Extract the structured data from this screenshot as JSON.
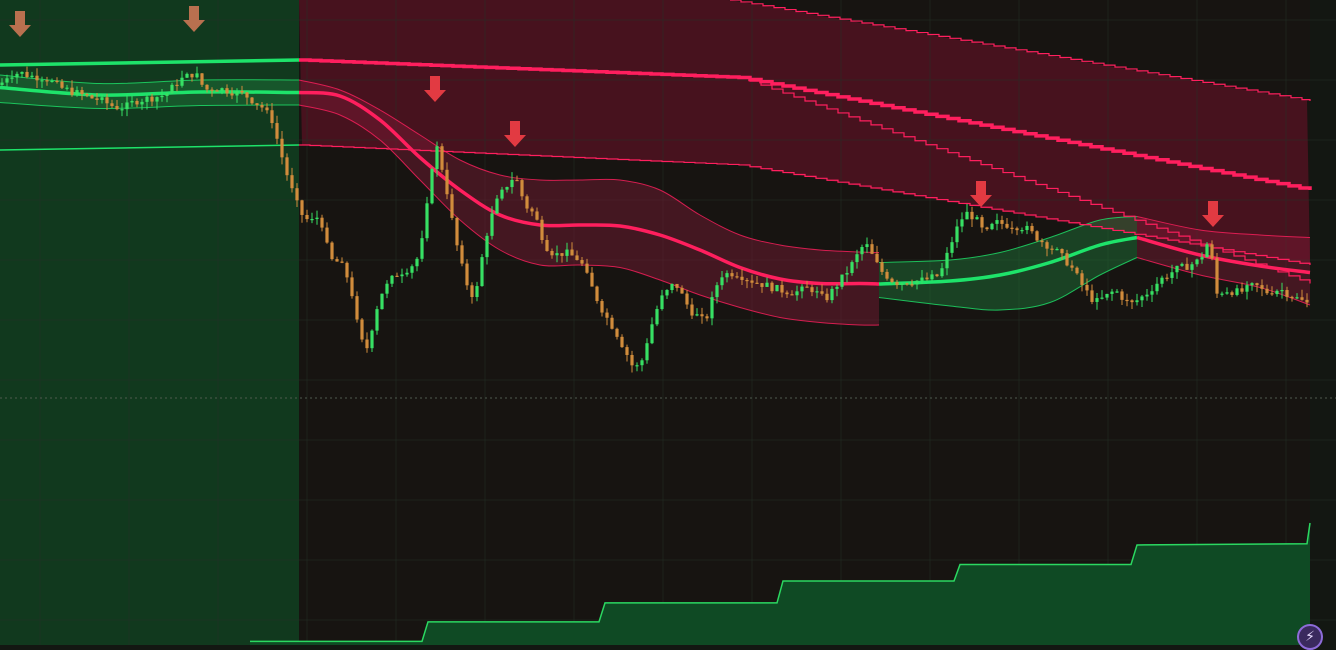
{
  "chart_data": {
    "type": "candlestick",
    "title": "",
    "xlabel": "",
    "ylabel": "",
    "ylim": [
      0,
      100
    ],
    "grid": true,
    "legend": "none",
    "price_path": {
      "x": [
        0,
        8,
        20,
        30,
        45,
        60,
        75,
        90,
        100,
        115,
        125,
        135,
        150,
        165,
        180,
        195,
        205,
        215,
        230,
        245,
        262,
        272,
        280,
        290,
        300,
        310,
        320,
        330,
        340,
        350,
        360,
        367,
        380,
        395,
        410,
        420,
        428,
        435,
        445,
        455,
        465,
        475,
        485,
        495,
        505,
        515,
        525,
        535,
        545,
        555,
        565,
        580,
        595,
        605,
        615,
        625,
        632,
        640,
        650,
        660,
        675,
        690,
        705,
        720,
        735,
        750,
        765,
        780,
        795,
        810,
        825,
        835,
        850,
        865,
        880,
        895,
        910,
        925,
        940,
        955,
        965,
        975,
        985,
        995,
        1010,
        1025,
        1040,
        1055,
        1070,
        1085,
        1095,
        1105,
        1115,
        1130,
        1145,
        1160,
        1175,
        1190,
        1200,
        1210,
        1215,
        1225,
        1240,
        1255,
        1265,
        1280,
        1295,
        1310
      ],
      "y": [
        83.0,
        85.0,
        85.5,
        84.8,
        84.5,
        82.5,
        81.5,
        80.5,
        80.0,
        78.6,
        78.5,
        79.8,
        80.4,
        81.0,
        84.0,
        85.5,
        82.0,
        82.5,
        81.8,
        81.0,
        78.6,
        76.0,
        70.0,
        63.0,
        57.5,
        55.5,
        57.0,
        48.0,
        47.5,
        43.5,
        32.0,
        30.5,
        41.0,
        45.0,
        46.5,
        49.0,
        60.0,
        72.0,
        64.0,
        52.5,
        44.0,
        40.0,
        52.0,
        59.0,
        62.5,
        65.0,
        59.0,
        57.0,
        51.0,
        49.0,
        49.5,
        48.0,
        41.0,
        37.0,
        34.0,
        30.0,
        27.0,
        26.5,
        34.0,
        40.0,
        43.5,
        38.0,
        35.5,
        45.0,
        45.5,
        44.0,
        43.0,
        42.0,
        41.5,
        42.5,
        40.0,
        42.5,
        46.5,
        51.5,
        46.0,
        43.5,
        43.7,
        44.0,
        45.0,
        53.5,
        57.5,
        56.5,
        53.0,
        55.5,
        55.0,
        54.5,
        52.0,
        50.0,
        47.0,
        42.0,
        39.5,
        40.5,
        42.0,
        39.0,
        41.0,
        44.0,
        46.0,
        47.0,
        48.0,
        52.5,
        41.0,
        42.0,
        41.5,
        43.0,
        41.5,
        42.2,
        40.5,
        39.0
      ]
    },
    "trend_bands": [
      {
        "x": [
          0,
          100,
          200,
          299
        ],
        "mid": [
          82.5,
          81.0,
          81.6,
          81.5
        ],
        "upper": [
          85.0,
          83.3,
          84.0,
          84.0
        ],
        "lower": [
          79.5,
          78.3,
          78.9,
          79.0
        ],
        "zone": "bull"
      },
      {
        "x": [
          299,
          340,
          380,
          420,
          460,
          500,
          540,
          580,
          620,
          660,
          700,
          740,
          780,
          820,
          860,
          879
        ],
        "mid": [
          81.5,
          80.8,
          76.0,
          68.5,
          62.0,
          57.0,
          55.0,
          55.0,
          54.8,
          53.0,
          50.0,
          46.5,
          44.2,
          43.3,
          43.3,
          43.2
        ],
        "upper": [
          84.0,
          82.0,
          78.0,
          73.0,
          68.0,
          65.0,
          64.0,
          64.0,
          64.0,
          62.0,
          57.0,
          53.0,
          51.0,
          50.0,
          49.6,
          49.5
        ],
        "lower": [
          79.0,
          77.0,
          72.0,
          64.0,
          56.0,
          50.0,
          47.0,
          47.0,
          46.5,
          44.0,
          41.0,
          38.5,
          36.5,
          35.5,
          35.0,
          35.0
        ],
        "zone": "bear"
      },
      {
        "x": [
          879,
          950,
          1000,
          1050,
          1100,
          1137
        ],
        "mid": [
          43.2,
          43.8,
          45.0,
          47.5,
          51.0,
          52.5
        ],
        "upper": [
          47.5,
          48.0,
          49.5,
          52.5,
          56.0,
          56.7
        ],
        "lower": [
          40.5,
          38.8,
          38.0,
          39.5,
          45.0,
          48.5
        ],
        "zone": "bull"
      },
      {
        "x": [
          1137,
          1200,
          1260,
          1310
        ],
        "mid": [
          52.5,
          49.0,
          46.8,
          45.5
        ],
        "upper": [
          56.7,
          54.0,
          53.0,
          52.5
        ],
        "lower": [
          48.5,
          45.0,
          42.5,
          39.0
        ],
        "zone": "bear"
      }
    ],
    "outer_levels": {
      "top_bull": {
        "x": [
          0,
          299
        ],
        "y": [
          87.0,
          88.0
        ]
      },
      "bottom_bull": {
        "x": [
          0,
          299
        ],
        "y": [
          70.0,
          71.0
        ]
      },
      "top_bear": {
        "x": [
          299,
          740,
          1310
        ],
        "y": [
          88.0,
          84.5,
          62.0
        ]
      },
      "upper_mid_bear": {
        "x": [
          299,
          740,
          1310
        ],
        "y": [
          88.0,
          84.5,
          43.3
        ]
      },
      "lower_mid_bear": {
        "x": [
          299,
          740,
          1310
        ],
        "y": [
          71.0,
          67.0,
          47.0
        ]
      },
      "top_edge_bear": {
        "x": [
          730,
          1310
        ],
        "y": [
          100.0,
          79.8
        ]
      }
    },
    "signals": [
      {
        "x": 20,
        "y": 95,
        "type": "sell"
      },
      {
        "x": 194,
        "y": 96,
        "type": "sell"
      },
      {
        "x": 435,
        "y": 82,
        "type": "sell"
      },
      {
        "x": 515,
        "y": 73,
        "type": "sell"
      },
      {
        "x": 981,
        "y": 61,
        "type": "sell"
      },
      {
        "x": 1213,
        "y": 57,
        "type": "sell"
      }
    ],
    "step_series": {
      "x": [
        250,
        428,
        605,
        783,
        960,
        1137,
        1310
      ],
      "y": [
        0.6,
        3.8,
        6.9,
        10.5,
        13.2,
        16.4,
        20.0
      ]
    }
  },
  "colors": {
    "background": "#131712",
    "bull_zone": "#123d20",
    "bear_zone": "#4a1220",
    "bull_line": "#1ee36a",
    "bear_line": "#ff1f5e",
    "candle_up": "#37e064",
    "candle_down": "#d18c3c",
    "arrow": "#e23a42",
    "arrow_faded": "#b9704f",
    "step_fill": "#0f4a24",
    "step_line": "#2bd861",
    "grid": "#233026"
  },
  "icons": {
    "quick_action": "lightning-icon"
  }
}
